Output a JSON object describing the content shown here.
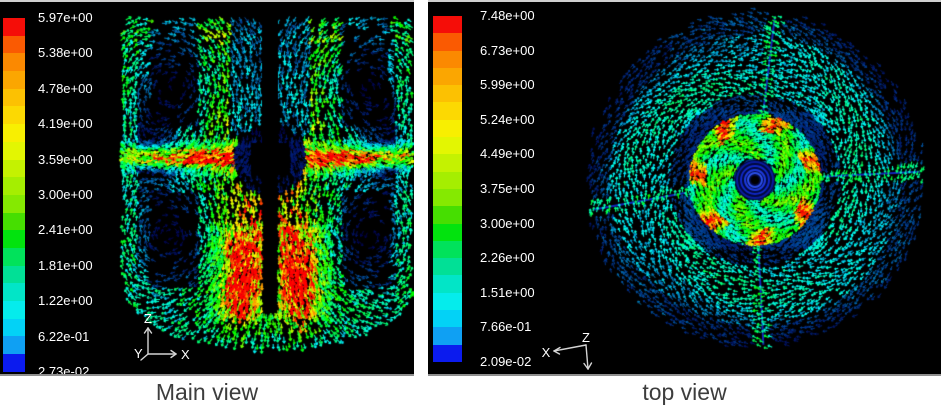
{
  "figure": {
    "background": "#ffffff",
    "panel_background": "#000000"
  },
  "colormap": {
    "label_color": "#ffffff",
    "segment_colors_top_to_bottom": [
      "#f50d08",
      "#fa5a02",
      "#fb8901",
      "#fba601",
      "#fcc102",
      "#fcd902",
      "#f8ef01",
      "#e3f602",
      "#c4f201",
      "#a5ee01",
      "#85e901",
      "#46de01",
      "#02e30e",
      "#01e25b",
      "#01e096",
      "#02e5c7",
      "#05ecec",
      "#03d2f6",
      "#0fa0f3",
      "#0b1bee"
    ]
  },
  "panels": {
    "main": {
      "caption": "Main view",
      "colorbar_labels": [
        "5.97e+00",
        "5.38e+00",
        "4.78e+00",
        "4.19e+00",
        "3.59e+00",
        "3.00e+00",
        "2.41e+00",
        "1.81e+00",
        "1.22e+00",
        "6.22e-01",
        "2.73e-02"
      ],
      "axis_labels": {
        "up": "Z",
        "right": "X",
        "out": "Y"
      }
    },
    "top": {
      "caption": "top view",
      "colorbar_labels": [
        "7.48e+00",
        "6.73e+00",
        "5.99e+00",
        "5.24e+00",
        "4.49e+00",
        "3.75e+00",
        "3.00e+00",
        "2.26e+00",
        "1.51e+00",
        "7.66e-01",
        "2.09e-02"
      ],
      "axis_labels": {
        "left": "X",
        "origin": "Z"
      }
    }
  },
  "chart_data": [
    {
      "type": "heatmap",
      "subtype": "velocity-vector-field",
      "title": "Main view",
      "view": "vertical mid-plane section of a baffled stirred tank with radial impeller jet",
      "legend_position": "left",
      "colorbar_tick_labels": [
        "5.97e+00",
        "5.38e+00",
        "4.78e+00",
        "4.19e+00",
        "3.59e+00",
        "3.00e+00",
        "2.41e+00",
        "1.81e+00",
        "1.22e+00",
        "6.22e-01",
        "2.73e-02"
      ],
      "colorbar_tick_values": [
        5.97,
        5.38,
        4.78,
        4.19,
        3.59,
        3.0,
        2.41,
        1.81,
        1.22,
        0.622,
        0.0273
      ],
      "range": [
        0.0273,
        5.97
      ]
    },
    {
      "type": "heatmap",
      "subtype": "velocity-vector-field",
      "title": "top view",
      "view": "horizontal section of the stirred tank showing swirl around impeller and four baffles",
      "legend_position": "left",
      "colorbar_tick_labels": [
        "7.48e+00",
        "6.73e+00",
        "5.99e+00",
        "5.24e+00",
        "4.49e+00",
        "3.75e+00",
        "3.00e+00",
        "2.26e+00",
        "1.51e+00",
        "7.66e-01",
        "2.09e-02"
      ],
      "colorbar_tick_values": [
        7.48,
        6.73,
        5.99,
        5.24,
        4.49,
        3.75,
        3.0,
        2.26,
        1.51,
        0.766,
        0.0209
      ],
      "range": [
        0.0209,
        7.48
      ]
    }
  ]
}
